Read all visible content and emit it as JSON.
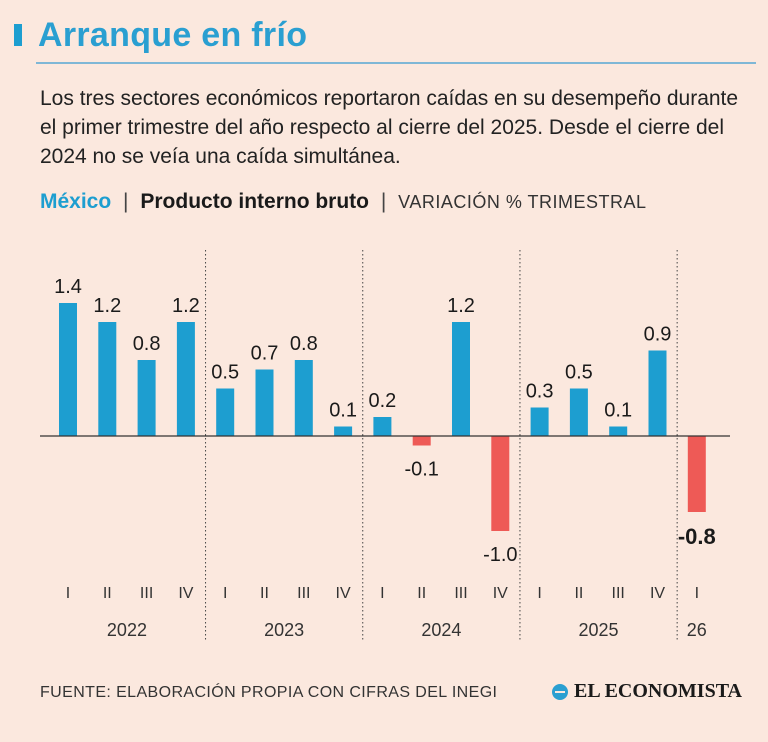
{
  "header": {
    "title": "Arranque en frío",
    "intro": "Los tres sectores económicos reportaron caídas en su desempeño durante el primer trimestre del año respecto al cierre del 2025. Desde el cierre del 2024 no se veía una caída simultánea."
  },
  "subhead": {
    "country": "México",
    "metric": "Producto interno bruto",
    "unit": "VARIACIÓN % TRIMESTRAL",
    "separator": "|"
  },
  "colors": {
    "positive": "#1d9ed0",
    "negative": "#ee5a56",
    "title": "#2a9fd1",
    "background": "#fbe8de"
  },
  "chart_data": {
    "type": "bar",
    "title": "",
    "xlabel": "",
    "ylabel": "",
    "ylim": [
      -1.0,
      1.4
    ],
    "grid": false,
    "legend": "none",
    "categories": [
      "I",
      "II",
      "III",
      "IV",
      "I",
      "II",
      "III",
      "IV",
      "I",
      "II",
      "III",
      "IV",
      "I",
      "II",
      "III",
      "IV",
      "I"
    ],
    "years": [
      "2022",
      "2022",
      "2022",
      "2022",
      "2023",
      "2023",
      "2023",
      "2023",
      "2024",
      "2024",
      "2024",
      "2024",
      "2025",
      "2025",
      "2025",
      "2025",
      "26"
    ],
    "year_groups": [
      "2022",
      "2023",
      "2024",
      "2025",
      "26"
    ],
    "values": [
      1.4,
      1.2,
      0.8,
      1.2,
      0.5,
      0.7,
      0.8,
      0.1,
      0.2,
      -0.1,
      1.2,
      -1.0,
      0.3,
      0.5,
      0.1,
      0.9,
      -0.8
    ],
    "value_labels": [
      "1.4",
      "1.2",
      "0.8",
      "1.2",
      "0.5",
      "0.7",
      "0.8",
      "0.1",
      "0.2",
      "-0.1",
      "1.2",
      "-1.0",
      "0.3",
      "0.5",
      "0.1",
      "0.9",
      "-0.8"
    ]
  },
  "footer": {
    "source": "FUENTE: ELABORACIÓN PROPIA CON CIFRAS DEL INEGI",
    "brand": "EL ECONOMISTA"
  }
}
